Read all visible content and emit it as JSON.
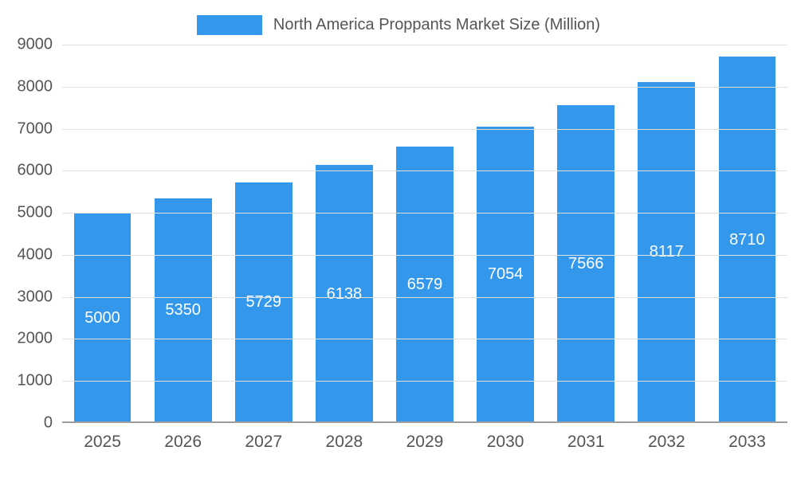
{
  "legend": {
    "title": "North America Proppants Market Size (Million)"
  },
  "colors": {
    "bar": "#3398EC",
    "grid": "#e0e0e0",
    "baseline": "#9e9e9e",
    "axis_text": "#555555",
    "bar_label_text": "#ffffff"
  },
  "chart_data": {
    "type": "bar",
    "title": "North America Proppants Market Size (Million)",
    "categories": [
      "2025",
      "2026",
      "2027",
      "2028",
      "2029",
      "2030",
      "2031",
      "2032",
      "2033"
    ],
    "values": [
      5000,
      5350,
      5729,
      6138,
      6579,
      7054,
      7566,
      8117,
      8710
    ],
    "xlabel": "",
    "ylabel": "",
    "ylim": [
      0,
      9000
    ],
    "yticks": [
      0,
      1000,
      2000,
      3000,
      4000,
      5000,
      6000,
      7000,
      8000,
      9000
    ],
    "grid": true,
    "legend_position": "top",
    "value_labels": "inside-center"
  }
}
